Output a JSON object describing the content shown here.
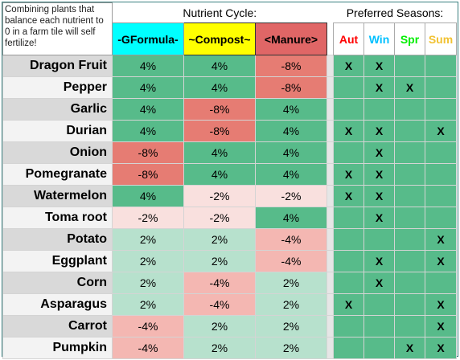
{
  "note": "Combining plants that balance each nutrient to 0 in a farm tile will self fertilize!",
  "nutrient_title": "Nutrient Cycle:",
  "season_title": "Preferred Seasons:",
  "nutrients": [
    {
      "label": "-GFormula-",
      "color": "#00ffff"
    },
    {
      "label": "~Compost~",
      "color": "#ffff00"
    },
    {
      "label": "<Manure>",
      "color": "#e06666"
    }
  ],
  "seasons": [
    {
      "label": "Aut",
      "color": "#ff0000"
    },
    {
      "label": "Win",
      "color": "#00c0ff"
    },
    {
      "label": "Spr",
      "color": "#00ee00"
    },
    {
      "label": "Sum",
      "color": "#f1c232"
    }
  ],
  "value_colors": {
    "4%": "#57bb8a",
    "2%": "#b7e1cd",
    "-2%": "#f9e0de",
    "-4%": "#f4b7b2",
    "-8%": "#e67c73"
  },
  "rows": [
    {
      "name": "Dragon Fruit",
      "values": [
        "4%",
        "4%",
        "-8%"
      ],
      "seasons": [
        "X",
        "X",
        "",
        ""
      ]
    },
    {
      "name": "Pepper",
      "values": [
        "4%",
        "4%",
        "-8%"
      ],
      "seasons": [
        "",
        "X",
        "X",
        ""
      ]
    },
    {
      "name": "Garlic",
      "values": [
        "4%",
        "-8%",
        "4%"
      ],
      "seasons": [
        "",
        "",
        "",
        ""
      ]
    },
    {
      "name": "Durian",
      "values": [
        "4%",
        "-8%",
        "4%"
      ],
      "seasons": [
        "X",
        "X",
        "",
        "X"
      ]
    },
    {
      "name": "Onion",
      "values": [
        "-8%",
        "4%",
        "4%"
      ],
      "seasons": [
        "",
        "X",
        "",
        ""
      ]
    },
    {
      "name": "Pomegranate",
      "values": [
        "-8%",
        "4%",
        "4%"
      ],
      "seasons": [
        "X",
        "X",
        "",
        ""
      ]
    },
    {
      "name": "Watermelon",
      "values": [
        "4%",
        "-2%",
        "-2%"
      ],
      "seasons": [
        "X",
        "X",
        "",
        ""
      ]
    },
    {
      "name": "Toma root",
      "values": [
        "-2%",
        "-2%",
        "4%"
      ],
      "seasons": [
        "",
        "X",
        "",
        ""
      ]
    },
    {
      "name": "Potato",
      "values": [
        "2%",
        "2%",
        "-4%"
      ],
      "seasons": [
        "",
        "",
        "",
        "X"
      ]
    },
    {
      "name": "Eggplant",
      "values": [
        "2%",
        "2%",
        "-4%"
      ],
      "seasons": [
        "",
        "X",
        "",
        "X"
      ]
    },
    {
      "name": "Corn",
      "values": [
        "2%",
        "-4%",
        "2%"
      ],
      "seasons": [
        "",
        "X",
        "",
        ""
      ]
    },
    {
      "name": "Asparagus",
      "values": [
        "2%",
        "-4%",
        "2%"
      ],
      "seasons": [
        "X",
        "",
        "",
        "X"
      ]
    },
    {
      "name": "Carrot",
      "values": [
        "-4%",
        "2%",
        "2%"
      ],
      "seasons": [
        "",
        "",
        "",
        "X"
      ]
    },
    {
      "name": "Pumpkin",
      "values": [
        "-4%",
        "2%",
        "2%"
      ],
      "seasons": [
        "",
        "",
        "X",
        "X"
      ]
    }
  ]
}
